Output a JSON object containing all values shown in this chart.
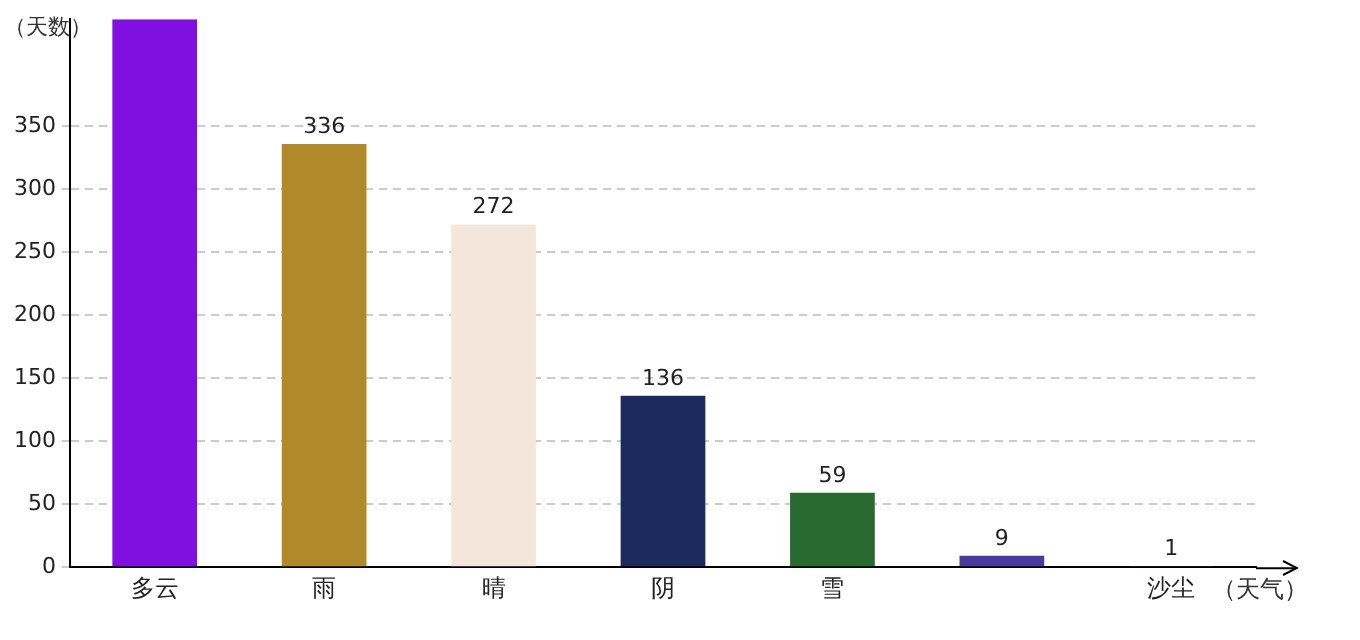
{
  "chart_data": {
    "type": "bar",
    "xlabel": "（天气）",
    "ylabel": "（天数）",
    "categories": [
      "多云",
      "雨",
      "晴",
      "阴",
      "雪",
      null,
      "沙尘"
    ],
    "values": [
      435,
      336,
      272,
      136,
      59,
      9,
      1
    ],
    "value_labels": [
      null,
      "336",
      "272",
      "136",
      "59",
      "9",
      "1"
    ],
    "colors": [
      "#8010e0",
      "#b08a2a",
      "#f5e6dc",
      "#1c2a5c",
      "#286a30",
      "#4a3aa0",
      "#5a2a90"
    ],
    "ylim": [
      0,
      435
    ],
    "yticks": [
      0,
      50,
      100,
      150,
      200,
      250,
      300,
      350
    ],
    "grid": "y",
    "legend": false
  }
}
